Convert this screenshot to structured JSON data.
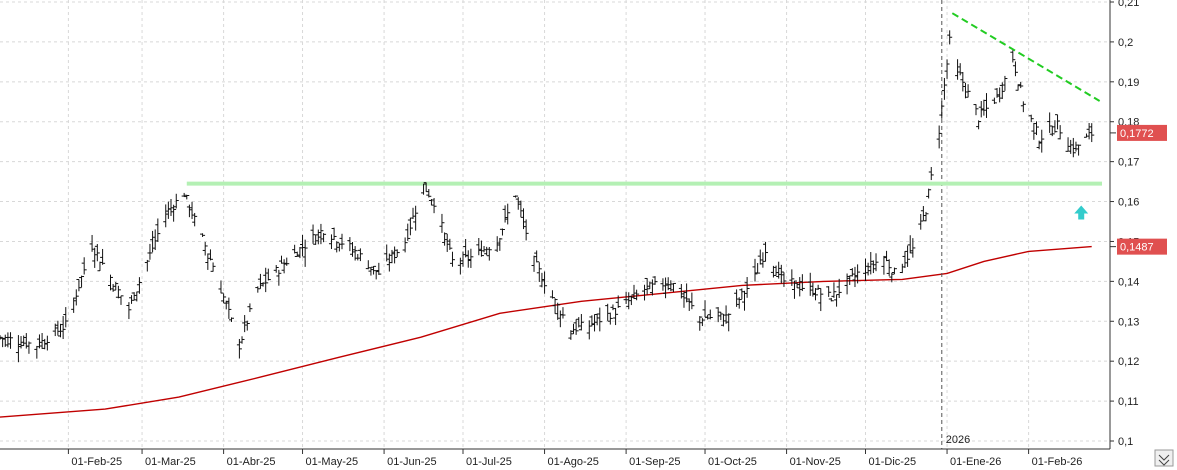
{
  "chart_data": {
    "type": "ohlc",
    "x_axis": {
      "labels": [
        "01-Feb-25",
        "01-Mar-25",
        "01-Abr-25",
        "01-May-25",
        "01-Jun-25",
        "01-Jul-25",
        "01-Ago-25",
        "01-Sep-25",
        "01-Oct-25",
        "01-Nov-25",
        "01-Dic-25",
        "01-Ene-26",
        "01-Feb-26"
      ],
      "year_marker": "2026",
      "range": [
        "2025-01-06",
        "2026-02-27"
      ]
    },
    "y_axis": {
      "ticks": [
        "0,1",
        "0,11",
        "0,12",
        "0,13",
        "0,14",
        "0,15",
        "0,16",
        "0,17",
        "0,18",
        "0,19",
        "0,2",
        "0,21"
      ],
      "ylim": [
        0.1,
        0.21
      ],
      "side": "right",
      "grid": true
    },
    "ohlc_anchors": [
      [
        "2025-01-06",
        0.126
      ],
      [
        "2025-01-20",
        0.124
      ],
      [
        "2025-01-31",
        0.129
      ],
      [
        "2025-02-10",
        0.149
      ],
      [
        "2025-02-24",
        0.133
      ],
      [
        "2025-03-10",
        0.157
      ],
      [
        "2025-03-17",
        0.162
      ],
      [
        "2025-03-28",
        0.144
      ],
      [
        "2025-04-07",
        0.124
      ],
      [
        "2025-04-14",
        0.138
      ],
      [
        "2025-04-28",
        0.147
      ],
      [
        "2025-05-09",
        0.153
      ],
      [
        "2025-05-20",
        0.148
      ],
      [
        "2025-05-30",
        0.142
      ],
      [
        "2025-06-09",
        0.15
      ],
      [
        "2025-06-16",
        0.164
      ],
      [
        "2025-06-20",
        0.16
      ],
      [
        "2025-06-27",
        0.145
      ],
      [
        "2025-07-04",
        0.146
      ],
      [
        "2025-07-14",
        0.15
      ],
      [
        "2025-07-21",
        0.162
      ],
      [
        "2025-07-28",
        0.145
      ],
      [
        "2025-08-04",
        0.136
      ],
      [
        "2025-08-11",
        0.128
      ],
      [
        "2025-08-18",
        0.129
      ],
      [
        "2025-08-29",
        0.133
      ],
      [
        "2025-09-08",
        0.138
      ],
      [
        "2025-09-18",
        0.14
      ],
      [
        "2025-09-29",
        0.131
      ],
      [
        "2025-10-09",
        0.131
      ],
      [
        "2025-10-20",
        0.141
      ],
      [
        "2025-10-24",
        0.148
      ],
      [
        "2025-10-31",
        0.14
      ],
      [
        "2025-11-10",
        0.138
      ],
      [
        "2025-11-18",
        0.136
      ],
      [
        "2025-11-28",
        0.142
      ],
      [
        "2025-12-08",
        0.146
      ],
      [
        "2025-12-12",
        0.142
      ],
      [
        "2025-12-19",
        0.148
      ],
      [
        "2025-12-24",
        0.158
      ],
      [
        "2025-12-29",
        0.178
      ],
      [
        "2026-01-02",
        0.2
      ],
      [
        "2026-01-05",
        0.193
      ],
      [
        "2026-01-13",
        0.181
      ],
      [
        "2026-01-21",
        0.187
      ],
      [
        "2026-01-26",
        0.196
      ],
      [
        "2026-01-30",
        0.185
      ],
      [
        "2026-02-05",
        0.176
      ],
      [
        "2026-02-12",
        0.179
      ],
      [
        "2026-02-18",
        0.173
      ],
      [
        "2026-02-25",
        0.177
      ]
    ],
    "bar_range": 0.005,
    "moving_average": {
      "color": "#c00000",
      "points": [
        [
          "2025-01-06",
          0.106
        ],
        [
          "2025-02-15",
          0.108
        ],
        [
          "2025-03-15",
          0.111
        ],
        [
          "2025-04-15",
          0.116
        ],
        [
          "2025-05-15",
          0.121
        ],
        [
          "2025-06-15",
          0.126
        ],
        [
          "2025-07-15",
          0.132
        ],
        [
          "2025-08-15",
          0.135
        ],
        [
          "2025-09-15",
          0.137
        ],
        [
          "2025-10-15",
          0.139
        ],
        [
          "2025-11-15",
          0.14
        ],
        [
          "2025-12-15",
          0.1405
        ],
        [
          "2026-01-01",
          0.142
        ],
        [
          "2026-01-15",
          0.145
        ],
        [
          "2026-02-01",
          0.1475
        ],
        [
          "2026-02-25",
          0.1487
        ]
      ]
    },
    "annotations": {
      "support_line": {
        "from": "2025-03-18",
        "to": "2026-03-01",
        "value": 0.1645,
        "color": "#b4f0b4"
      },
      "trend_line": {
        "from": "2026-01-03",
        "to": "2026-02-28",
        "start": 0.2072,
        "end": 0.1852,
        "color": "#22cc22",
        "dashed": true
      },
      "up_arrow": {
        "date": "2026-02-21",
        "value": 0.157,
        "color": "#33cccc"
      },
      "year_divider": {
        "date": "2025-12-30"
      }
    },
    "price_badges": [
      {
        "text": "0,1772",
        "value": 0.1772,
        "color": "#e05050"
      },
      {
        "text": "0,1487",
        "value": 0.1487,
        "color": "#e05050"
      }
    ],
    "bar_color": "#111111",
    "grid_color": "#d8d8d8"
  }
}
